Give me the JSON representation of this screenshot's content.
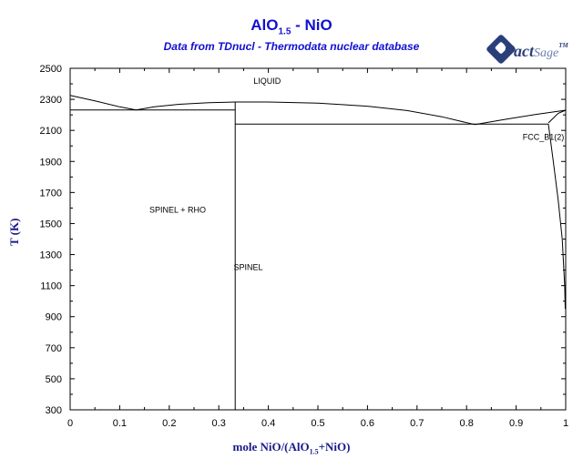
{
  "title": {
    "main": "AlO",
    "sub": "1.5",
    "rest": " - NiO"
  },
  "subtitle": "Data from TDnucl - Thermodata nuclear database",
  "logo": {
    "word1": "Fact",
    "word2": "Sage",
    "tm": "TM"
  },
  "chart_data": {
    "type": "phase-diagram",
    "xlabel": {
      "pre": "mole NiO/(AlO",
      "sub": "1.5",
      "post": "+NiO)"
    },
    "ylabel": "T (K)",
    "xlim": [
      0,
      1
    ],
    "ylim": [
      300,
      2500
    ],
    "xticks": [
      0,
      0.1,
      0.2,
      0.3,
      0.4,
      0.5,
      0.6,
      0.7,
      0.8,
      0.9,
      1
    ],
    "xtick_labels": [
      "0",
      "0.1",
      "0.2",
      "0.3",
      "0.4",
      "0.5",
      "0.6",
      "0.7",
      "0.8",
      "0.9",
      "1"
    ],
    "yticks": [
      300,
      500,
      700,
      900,
      1100,
      1300,
      1500,
      1700,
      1900,
      2100,
      2300,
      2500
    ],
    "ytick_labels": [
      "300",
      "500",
      "700",
      "900",
      "1100",
      "1300",
      "1500",
      "1700",
      "1900",
      "2100",
      "2300",
      "2500"
    ],
    "lines": [
      {
        "name": "liquidus-left",
        "points": [
          [
            0,
            2325
          ],
          [
            0.05,
            2290
          ],
          [
            0.1,
            2252
          ],
          [
            0.133,
            2232
          ]
        ]
      },
      {
        "name": "liquidus-middle",
        "points": [
          [
            0.133,
            2232
          ],
          [
            0.17,
            2252
          ],
          [
            0.22,
            2268
          ],
          [
            0.28,
            2278
          ],
          [
            0.333,
            2283
          ],
          [
            0.4,
            2283
          ],
          [
            0.5,
            2276
          ],
          [
            0.6,
            2256
          ],
          [
            0.68,
            2228
          ],
          [
            0.75,
            2188
          ],
          [
            0.8,
            2150
          ],
          [
            0.817,
            2138
          ]
        ]
      },
      {
        "name": "liquidus-right",
        "points": [
          [
            0.817,
            2138
          ],
          [
            0.88,
            2172
          ],
          [
            0.94,
            2203
          ],
          [
            1.0,
            2230
          ]
        ]
      },
      {
        "name": "solidus-fcc",
        "points": [
          [
            0.965,
            2148
          ],
          [
            0.985,
            2210
          ],
          [
            1.0,
            2230
          ]
        ]
      },
      {
        "name": "eutectic-left",
        "points": [
          [
            0,
            2232
          ],
          [
            0.333,
            2232
          ]
        ]
      },
      {
        "name": "eutectic-right",
        "points": [
          [
            0.333,
            2141
          ],
          [
            0.965,
            2141
          ]
        ]
      },
      {
        "name": "spinel-vertical",
        "points": [
          [
            0.333,
            300
          ],
          [
            0.333,
            2283
          ]
        ]
      },
      {
        "name": "fcc-solvus",
        "points": [
          [
            0.965,
            2141
          ],
          [
            0.975,
            1900
          ],
          [
            0.985,
            1650
          ],
          [
            0.993,
            1400
          ],
          [
            0.998,
            1100
          ],
          [
            0.999,
            950
          ]
        ]
      }
    ],
    "annotations": [
      {
        "text": "LIQUID",
        "x": 0.37,
        "y": 2400
      },
      {
        "text": "SPINEL + RHO",
        "x": 0.16,
        "y": 1570
      },
      {
        "text": "SPINEL",
        "x": 0.33,
        "y": 1200
      },
      {
        "text": "FCC_B1(2)",
        "x": 0.955,
        "y": 2040
      }
    ]
  }
}
